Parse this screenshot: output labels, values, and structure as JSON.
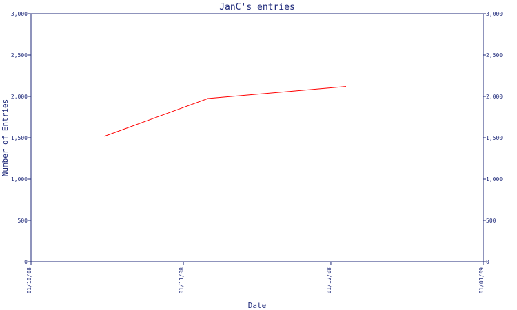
{
  "chart_data": {
    "type": "line",
    "title": "JanC's entries",
    "xlabel": "Date",
    "ylabel": "Number of Entries",
    "x_ticks": [
      "01/10/08",
      "01/11/08",
      "01/12/08",
      "01/01/09"
    ],
    "y_ticks": [
      "0",
      "500",
      "1,000",
      "1,500",
      "2,000",
      "2,500",
      "3,000"
    ],
    "ylim": [
      0,
      3000
    ],
    "xlim": [
      "2008-10-01",
      "2009-01-01"
    ],
    "series": [
      {
        "color": "#ff0000",
        "points": [
          {
            "x": "2008-10-16",
            "y": 1520
          },
          {
            "x": "2008-11-06",
            "y": 1975
          },
          {
            "x": "2008-12-04",
            "y": 2120
          }
        ]
      }
    ],
    "grid": false,
    "right_axis": true
  }
}
